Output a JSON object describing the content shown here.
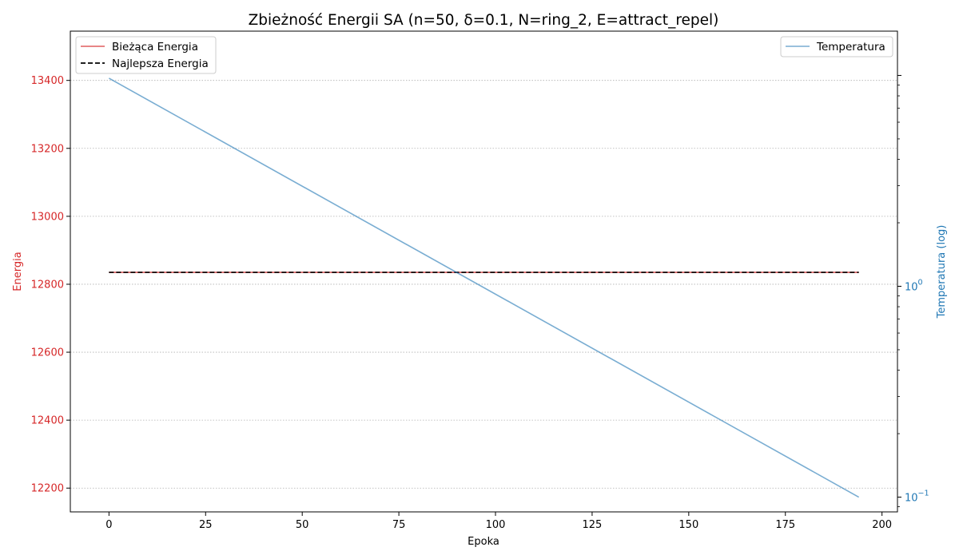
{
  "chart_data": {
    "type": "line",
    "title": "Zbieżność Energii SA (n=50, δ=0.1, N=ring_2, E=attract_repel)",
    "xlabel": "Epoka",
    "ylabel": "Energia",
    "y2label": "Temperatura (log)",
    "xlim": [
      -10,
      204
    ],
    "ylim": [
      12130,
      13545
    ],
    "y2lim_log10": [
      -1.07,
      1.21
    ],
    "y2scale": "log",
    "x_ticks": [
      0,
      25,
      50,
      75,
      100,
      125,
      150,
      175,
      200
    ],
    "x_tick_labels": [
      "0",
      "25",
      "50",
      "75",
      "100",
      "125",
      "150",
      "175",
      "200"
    ],
    "y_ticks": [
      12200,
      12400,
      12600,
      12800,
      13000,
      13200,
      13400
    ],
    "y_tick_labels": [
      "12200",
      "12400",
      "12600",
      "12800",
      "13000",
      "13200",
      "13400"
    ],
    "y2_major_ticks": [
      0.1,
      1
    ],
    "y2_major_labels": [
      {
        "base": "10",
        "exp": "−1"
      },
      {
        "base": "10",
        "exp": "0"
      }
    ],
    "grid": "y-dotted",
    "legend_left": "top-left",
    "legend_right": "top-right",
    "series": [
      {
        "name": "Bieżąca Energia",
        "axis": "left",
        "color": "#d62728",
        "style": "solid",
        "x": [
          0,
          194
        ],
        "y": [
          12835,
          12835
        ]
      },
      {
        "name": "Najlepsza Energia",
        "axis": "left",
        "color": "#000000",
        "style": "dashed",
        "x": [
          0,
          194
        ],
        "y": [
          12835,
          12835
        ]
      },
      {
        "name": "Temperatura",
        "axis": "right",
        "color": "#1f77b4",
        "style": "solid",
        "x": [
          0,
          194
        ],
        "y": [
          9.7,
          0.1
        ]
      }
    ],
    "colors": {
      "left_axis": "#d62728",
      "right_axis": "#1f77b4",
      "grid": "#b0b0b0"
    }
  }
}
